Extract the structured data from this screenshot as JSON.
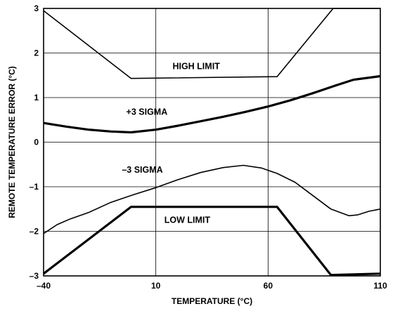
{
  "chart_data": {
    "type": "line",
    "title": "",
    "xlabel": "TEMPERATURE (°C)",
    "ylabel": "REMOTE TEMPERATURE ERROR (°C)",
    "xlim": [
      -40,
      110
    ],
    "ylim": [
      -3,
      3
    ],
    "x_ticks": [
      "–40",
      "10",
      "60",
      "110"
    ],
    "y_ticks": [
      "–3",
      "–2",
      "–1",
      "0",
      "1",
      "2",
      "3"
    ],
    "grid": true,
    "series": [
      {
        "name": "HIGH LIMIT",
        "points": [
          [
            -40,
            2.95
          ],
          [
            -1,
            1.43
          ],
          [
            64,
            1.47
          ],
          [
            89,
            3.0
          ],
          [
            110,
            3.0
          ]
        ]
      },
      {
        "name": "+3 SIGMA",
        "points": [
          [
            -40,
            0.43
          ],
          [
            -30,
            0.35
          ],
          [
            -20,
            0.28
          ],
          [
            -10,
            0.24
          ],
          [
            -1,
            0.22
          ],
          [
            10,
            0.28
          ],
          [
            20,
            0.37
          ],
          [
            30,
            0.47
          ],
          [
            40,
            0.57
          ],
          [
            50,
            0.68
          ],
          [
            60,
            0.8
          ],
          [
            70,
            0.94
          ],
          [
            80,
            1.1
          ],
          [
            90,
            1.27
          ],
          [
            98,
            1.4
          ],
          [
            110,
            1.48
          ]
        ]
      },
      {
        "name": "–3 SIGMA",
        "points": [
          [
            -40,
            -2.05
          ],
          [
            -34,
            -1.85
          ],
          [
            -28,
            -1.72
          ],
          [
            -20,
            -1.58
          ],
          [
            -10,
            -1.35
          ],
          [
            0,
            -1.18
          ],
          [
            10,
            -1.02
          ],
          [
            20,
            -0.84
          ],
          [
            30,
            -0.68
          ],
          [
            40,
            -0.57
          ],
          [
            49,
            -0.52
          ],
          [
            57,
            -0.58
          ],
          [
            64,
            -0.7
          ],
          [
            72,
            -0.9
          ],
          [
            80,
            -1.2
          ],
          [
            88,
            -1.5
          ],
          [
            96,
            -1.65
          ],
          [
            100,
            -1.63
          ],
          [
            105,
            -1.55
          ],
          [
            110,
            -1.5
          ]
        ]
      },
      {
        "name": "LOW LIMIT",
        "points": [
          [
            -40,
            -2.95
          ],
          [
            -1,
            -1.45
          ],
          [
            64,
            -1.45
          ],
          [
            88,
            -2.98
          ],
          [
            110,
            -2.95
          ]
        ]
      }
    ],
    "annotations": [
      {
        "text": "HIGH LIMIT",
        "x": 28,
        "y": 1.7
      },
      {
        "text": "+3 SIGMA",
        "x": 6,
        "y": 0.68
      },
      {
        "text": "–3 SIGMA",
        "x": 4,
        "y": -0.62
      },
      {
        "text": "LOW LIMIT",
        "x": 24,
        "y": -1.75
      }
    ]
  }
}
